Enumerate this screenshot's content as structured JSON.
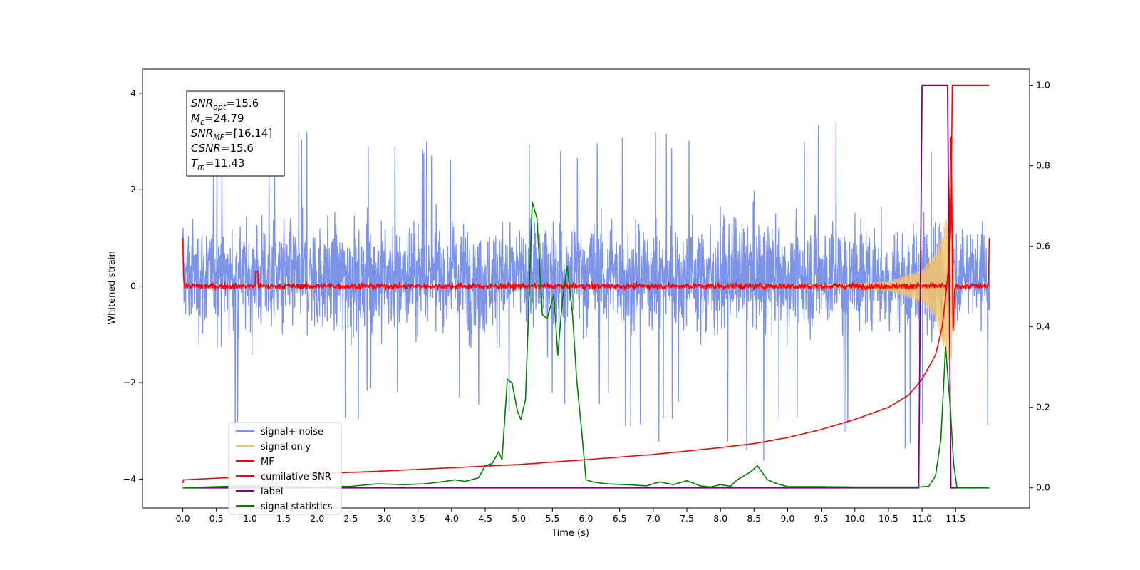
{
  "chart_data": {
    "type": "line",
    "xlabel": "Time (s)",
    "ylabel": "Whitened strain",
    "xlim": [
      -0.6,
      12.6
    ],
    "ylim": [
      -4.6,
      4.5
    ],
    "y2lim": [
      -0.05,
      1.04
    ],
    "x_ticks": [
      "0.0",
      "0.5",
      "1.0",
      "1.5",
      "2.0",
      "2.5",
      "3.0",
      "3.5",
      "4.0",
      "4.5",
      "5.0",
      "5.5",
      "6.0",
      "6.5",
      "7.0",
      "7.5",
      "8.0",
      "8.5",
      "9.0",
      "9.5",
      "10.0",
      "10.5",
      "11.0",
      "11.5"
    ],
    "y_ticks": [
      "4",
      "2",
      "0",
      "−2",
      "−4"
    ],
    "y2_ticks": [
      "1.0",
      "0.8",
      "0.6",
      "0.4",
      "0.2",
      "0.0"
    ],
    "grid": false,
    "legend_position": "lower-left",
    "annotation": {
      "lines": [
        {
          "sym": "SNR",
          "sub": "opt",
          "val": "=15.6"
        },
        {
          "sym": "M",
          "sub": "c",
          "val": "=24.79"
        },
        {
          "sym": "SNR",
          "sub": "MF",
          "val": "=[16.14]"
        },
        {
          "sym": "CSNR",
          "sub": "",
          "val": "=15.6"
        },
        {
          "sym": "T",
          "sub": "m",
          "val": "=11.43"
        }
      ]
    },
    "series": [
      {
        "name": "signal+ noise",
        "color": "#7b93e8",
        "axis": "left",
        "description": "noise band",
        "x_range": [
          0.0,
          12.0
        ],
        "typical_band": [
          -1.8,
          2.2
        ],
        "peaks_max": [
          2.8,
          2.6,
          2.9,
          3.2,
          3.1,
          3.0,
          3.0,
          2.8,
          2.6,
          3.0,
          3.0,
          3.4,
          3.4,
          3.2,
          3.3,
          3.5,
          3.4,
          3.6,
          3.2,
          3.0,
          3.2,
          3.2
        ],
        "peaks_min": [
          -1.9,
          -3.1,
          -2.9,
          -2.7,
          -3.1,
          -2.4,
          -2.8,
          -2.6,
          -2.7,
          -3.0,
          -2.5,
          -2.5,
          -3.3,
          -2.8,
          -3.4,
          -3.8,
          -3.1,
          -2.6,
          -3.1,
          -3.4,
          -3.3,
          -3.0
        ]
      },
      {
        "name": "signal only",
        "color": "#f5c46a",
        "axis": "left",
        "x_range": [
          0.0,
          11.6
        ],
        "envelope_x": [
          9.0,
          10.0,
          10.5,
          11.0,
          11.2,
          11.35,
          11.43
        ],
        "envelope_amp": [
          0.02,
          0.05,
          0.1,
          0.35,
          0.7,
          1.4,
          1.8
        ]
      },
      {
        "name": "MF",
        "color": "#ff0000",
        "axis": "left",
        "description": "matched filter output",
        "x": [
          0.0,
          0.02,
          0.05,
          1.1,
          11.43,
          12.0
        ],
        "y": [
          1.0,
          0.1,
          0.0,
          0.3,
          3.1,
          1.0
        ],
        "baseline_noise": 0.08
      },
      {
        "name": "cumilative SNR",
        "color": "#ff0000",
        "axis": "right",
        "x": [
          0.0,
          0.01,
          0.5,
          1.0,
          2.0,
          3.0,
          4.0,
          5.0,
          6.0,
          7.0,
          8.0,
          8.5,
          9.0,
          9.5,
          10.0,
          10.5,
          10.8,
          11.0,
          11.2,
          11.3,
          11.38,
          11.43,
          11.45,
          12.0
        ],
        "y": [
          0.012,
          0.02,
          0.024,
          0.028,
          0.035,
          0.042,
          0.05,
          0.058,
          0.07,
          0.083,
          0.1,
          0.11,
          0.125,
          0.145,
          0.17,
          0.2,
          0.23,
          0.27,
          0.33,
          0.4,
          0.52,
          0.65,
          1.0,
          1.0
        ]
      },
      {
        "name": "label",
        "color": "#800080",
        "axis": "right",
        "x": [
          0.0,
          10.95,
          11.0,
          11.38,
          11.43,
          12.0
        ],
        "y": [
          0.0,
          0.0,
          1.0,
          1.0,
          0.0,
          0.0
        ]
      },
      {
        "name": "signal statistics",
        "color": "#008000",
        "axis": "right",
        "x": [
          0.0,
          0.5,
          1.0,
          1.5,
          2.0,
          2.5,
          2.9,
          3.3,
          3.6,
          3.9,
          4.05,
          4.2,
          4.4,
          4.5,
          4.6,
          4.7,
          4.75,
          4.83,
          4.9,
          4.98,
          5.03,
          5.1,
          5.2,
          5.27,
          5.35,
          5.42,
          5.52,
          5.58,
          5.65,
          5.72,
          5.8,
          5.86,
          5.93,
          6.0,
          6.1,
          6.3,
          6.6,
          6.9,
          7.1,
          7.3,
          7.5,
          7.7,
          7.85,
          8.0,
          8.15,
          8.25,
          8.35,
          8.45,
          8.55,
          8.7,
          8.85,
          9.0,
          9.5,
          10.0,
          10.5,
          10.95,
          11.1,
          11.2,
          11.28,
          11.35,
          11.42,
          11.47,
          11.52,
          11.55,
          12.0
        ],
        "y": [
          0.0,
          0.003,
          0.005,
          0.003,
          0.002,
          0.004,
          0.01,
          0.008,
          0.01,
          0.016,
          0.02,
          0.016,
          0.025,
          0.055,
          0.06,
          0.09,
          0.07,
          0.27,
          0.26,
          0.19,
          0.17,
          0.22,
          0.71,
          0.67,
          0.43,
          0.42,
          0.48,
          0.33,
          0.47,
          0.55,
          0.43,
          0.27,
          0.15,
          0.02,
          0.015,
          0.01,
          0.008,
          0.005,
          0.015,
          0.008,
          0.018,
          0.005,
          0.002,
          0.008,
          0.004,
          0.02,
          0.03,
          0.04,
          0.055,
          0.02,
          0.01,
          0.003,
          0.003,
          0.002,
          0.002,
          0.002,
          0.004,
          0.03,
          0.12,
          0.35,
          0.2,
          0.06,
          0.0,
          0.0,
          0.0
        ]
      }
    ]
  }
}
